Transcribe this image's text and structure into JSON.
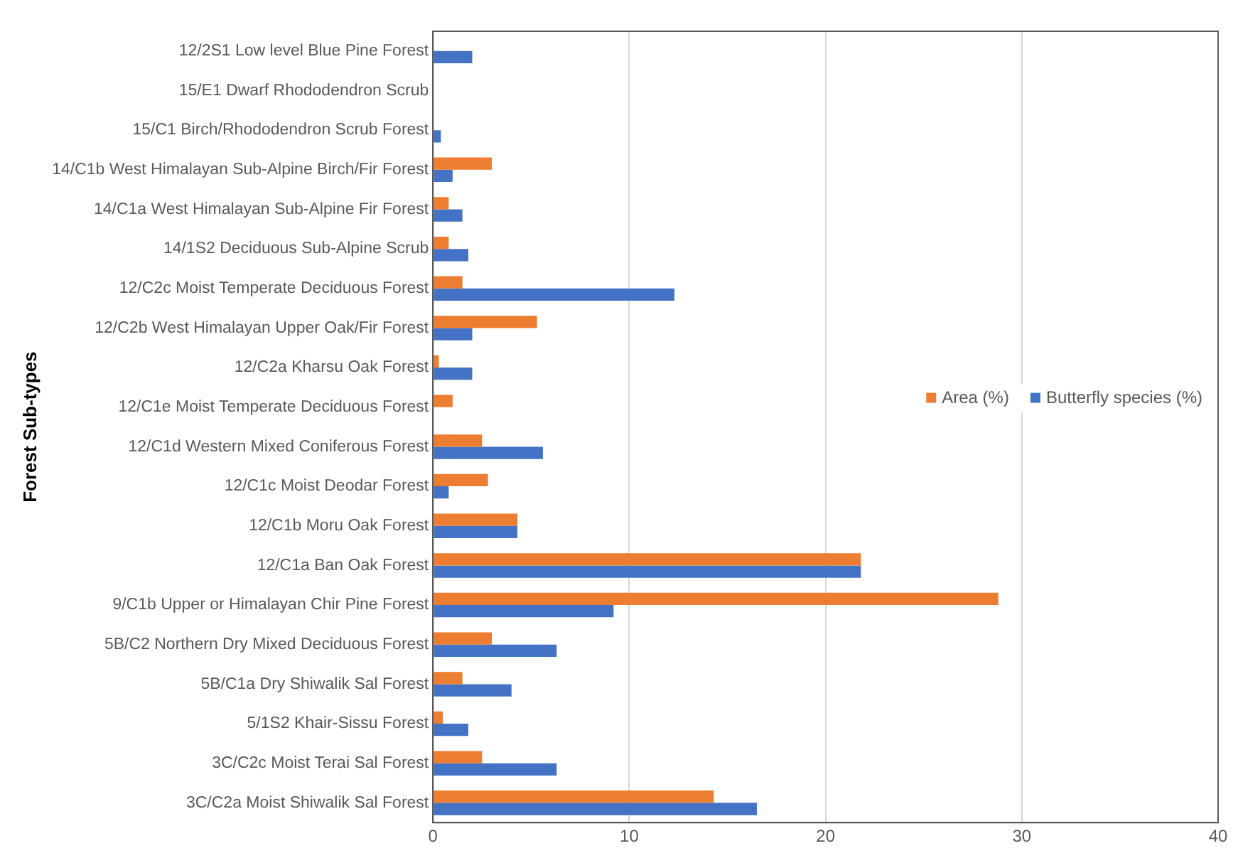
{
  "chart_data": {
    "type": "bar",
    "orientation": "horizontal",
    "ylabel": "Forest Sub-types",
    "categories": [
      "12/2S1 Low level Blue Pine Forest",
      "15/E1 Dwarf Rhododendron Scrub",
      "15/C1 Birch/Rhododendron Scrub Forest",
      "14/C1b West Himalayan Sub-Alpine Birch/Fir Forest",
      "14/C1a West Himalayan Sub-Alpine Fir Forest",
      "14/1S2 Deciduous Sub-Alpine Scrub",
      "12/C2c Moist Temperate Deciduous Forest",
      "12/C2b West Himalayan Upper Oak/Fir Forest",
      "12/C2a Kharsu Oak Forest",
      "12/C1e Moist Temperate Deciduous Forest",
      "12/C1d Western Mixed Coniferous Forest",
      "12/C1c Moist Deodar Forest",
      "12/C1b Moru Oak Forest",
      "12/C1a Ban Oak Forest",
      "9/C1b Upper or Himalayan Chir Pine Forest",
      "5B/C2 Northern Dry Mixed Deciduous Forest",
      "5B/C1a Dry Shiwalik Sal Forest",
      "5/1S2 Khair-Sissu Forest",
      "3C/C2c Moist Terai Sal Forest",
      "3C/C2a Moist Shiwalik Sal Forest"
    ],
    "series": [
      {
        "name": "Area (%)",
        "color": "#ed7d31",
        "values": [
          0,
          0,
          0,
          3,
          0.8,
          0.8,
          1.5,
          5.3,
          0.3,
          1,
          2.5,
          2.8,
          4.3,
          21.8,
          28.8,
          3,
          1.5,
          0.5,
          2.5,
          14.3
        ]
      },
      {
        "name": "Butterfly species (%)",
        "color": "#4472c4",
        "values": [
          2,
          0,
          0.4,
          1,
          1.5,
          1.8,
          12.3,
          2,
          2,
          0,
          5.6,
          0.8,
          4.3,
          21.8,
          9.2,
          6.3,
          4,
          1.8,
          6.3,
          16.5
        ]
      }
    ],
    "xlim": [
      0,
      40
    ],
    "xticks": [
      0,
      10,
      20,
      30,
      40
    ],
    "grid": "x",
    "legend": "right"
  }
}
